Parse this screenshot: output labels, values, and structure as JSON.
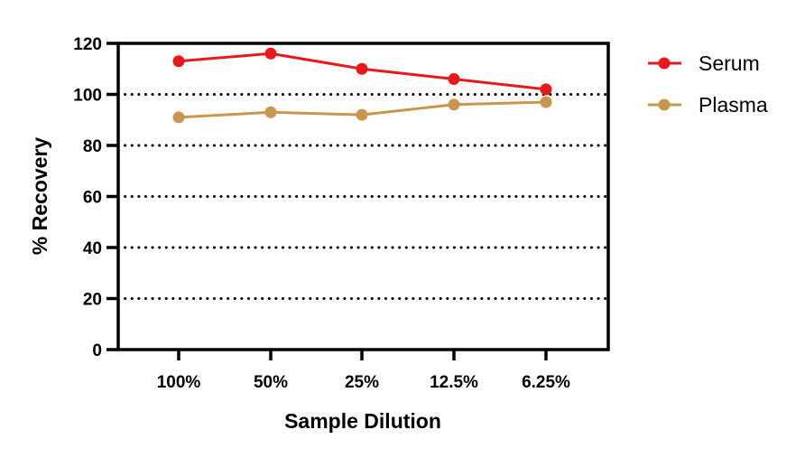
{
  "chart_data": {
    "type": "line",
    "title": "",
    "xlabel": "Sample Dilution",
    "ylabel": "% Recovery",
    "categories": [
      "100%",
      "50%",
      "25%",
      "12.5%",
      "6.25%"
    ],
    "ylim": [
      0,
      120
    ],
    "yticks": [
      "0",
      "20",
      "40",
      "60",
      "80",
      "100",
      "120"
    ],
    "grid": "horizontal dotted",
    "legend_position": "right",
    "series": [
      {
        "name": "Serum",
        "color": "#e8191c",
        "values": [
          113,
          116,
          110,
          106,
          102
        ]
      },
      {
        "name": "Plasma",
        "color": "#c8964f",
        "values": [
          91,
          93,
          92,
          96,
          97
        ]
      }
    ]
  }
}
